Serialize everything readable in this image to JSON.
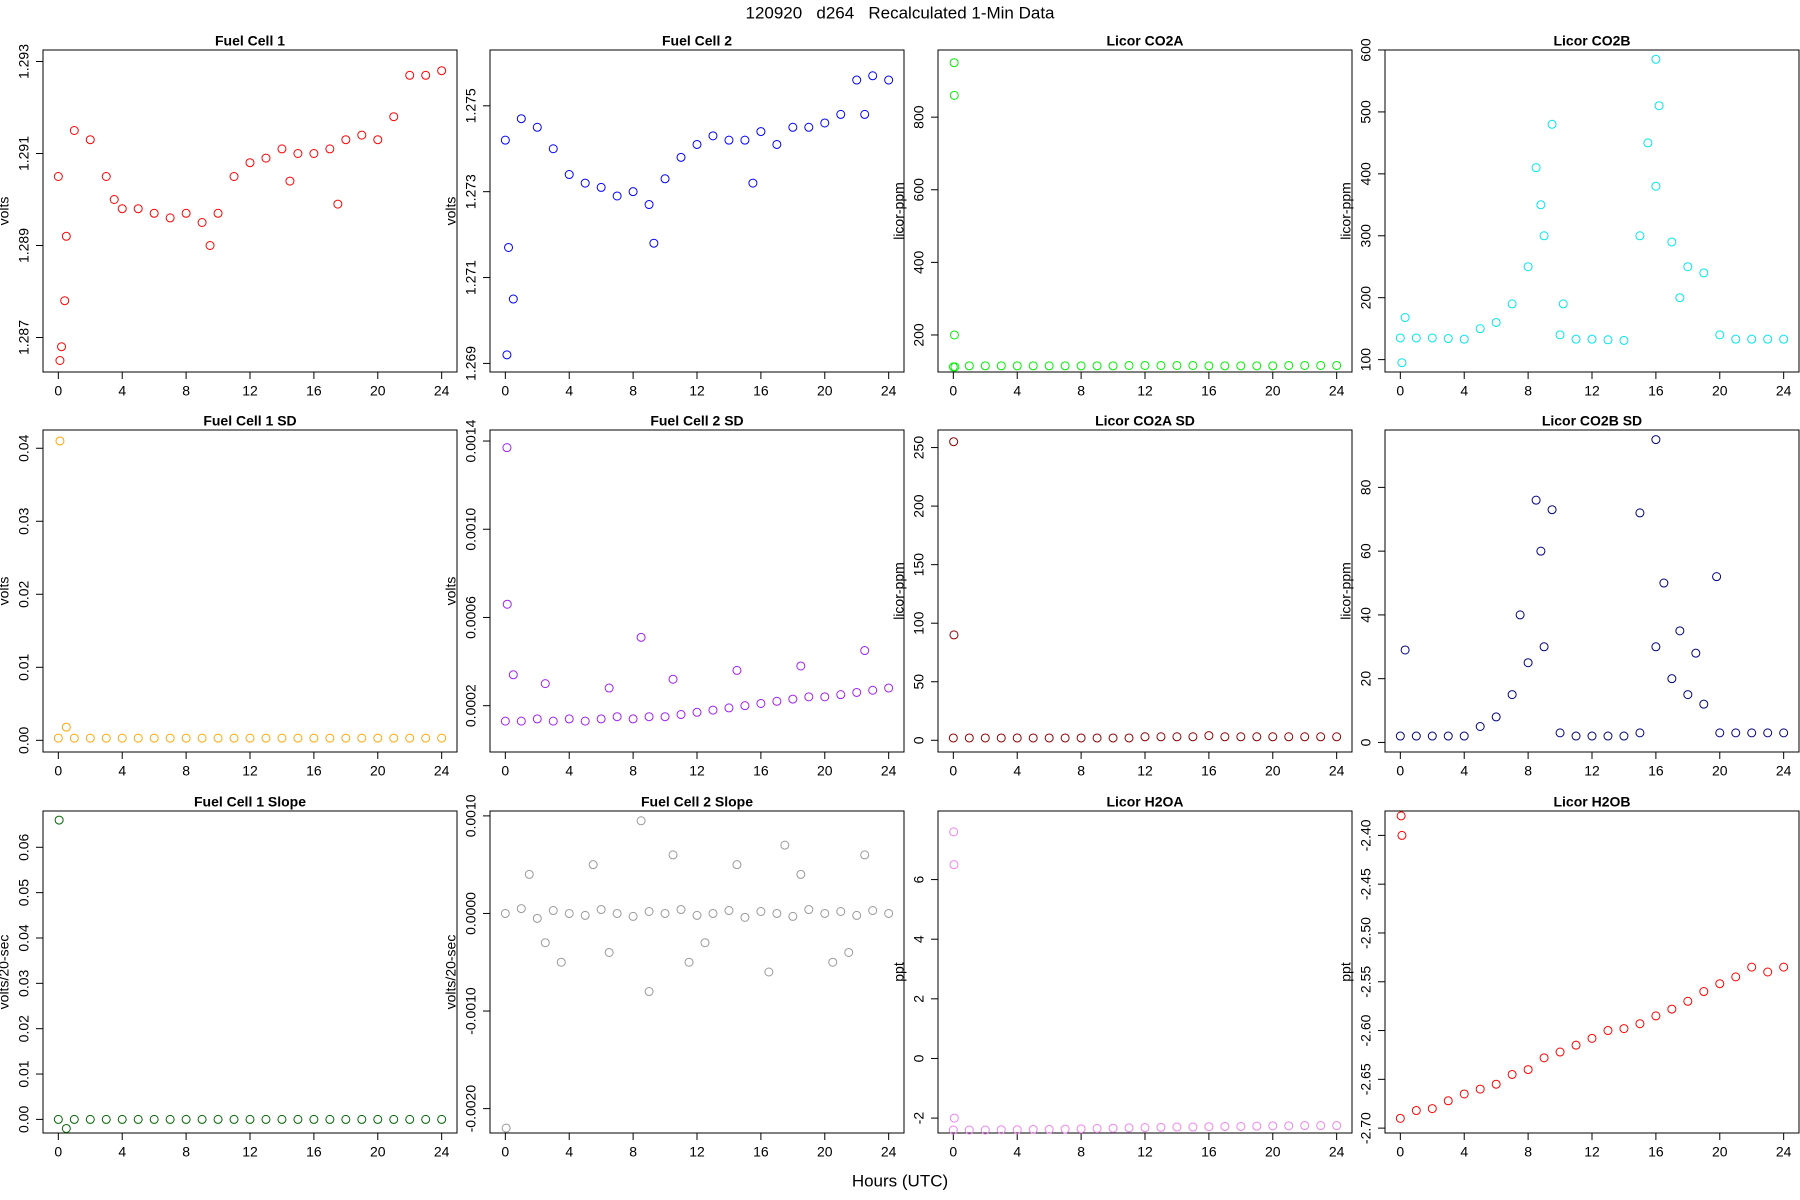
{
  "title": "120920   d264   Recalculated 1-Min Data",
  "x_label": "Hours (UTC)",
  "chart_data": [
    {
      "type": "scatter",
      "title": "Fuel Cell 1",
      "y_label": "volts",
      "color": "#ff0000",
      "x": [
        0,
        1,
        2,
        3,
        4,
        5,
        6,
        7,
        8,
        9,
        10,
        11,
        12,
        13,
        14,
        15,
        16,
        17,
        18,
        19,
        20,
        21,
        22,
        23,
        24,
        0.1,
        0.2,
        0.4,
        0.5,
        9.5,
        17.5,
        3.5,
        14.5
      ],
      "values": [
        1.2905,
        1.2915,
        1.2913,
        1.2905,
        1.2898,
        1.2898,
        1.2897,
        1.2896,
        1.2897,
        1.2895,
        1.2897,
        1.2905,
        1.2908,
        1.2909,
        1.2911,
        1.291,
        1.291,
        1.2911,
        1.2913,
        1.2914,
        1.2913,
        1.2918,
        1.2927,
        1.2927,
        1.2928,
        1.2865,
        1.2868,
        1.2878,
        1.2892,
        1.289,
        1.2899,
        1.29,
        1.2904
      ],
      "xlim": [
        -0.96,
        24.96
      ],
      "ylim": [
        1.28625,
        1.29325
      ],
      "xticks": [
        0,
        4,
        8,
        12,
        16,
        20,
        24
      ],
      "yticks": [
        1.287,
        1.289,
        1.291,
        1.293
      ]
    },
    {
      "type": "scatter",
      "title": "Fuel Cell 2",
      "y_label": "volts",
      "color": "#0000ff",
      "x": [
        0,
        1,
        2,
        3,
        4,
        5,
        6,
        7,
        8,
        9,
        10,
        11,
        12,
        13,
        14,
        15,
        16,
        17,
        18,
        19,
        20,
        21,
        22,
        23,
        24,
        0.1,
        0.2,
        0.5,
        9.3,
        15.5,
        22.5
      ],
      "values": [
        1.2742,
        1.2747,
        1.2745,
        1.274,
        1.2734,
        1.2732,
        1.2731,
        1.2729,
        1.273,
        1.2727,
        1.2733,
        1.2738,
        1.2741,
        1.2743,
        1.2742,
        1.2742,
        1.2744,
        1.2741,
        1.2745,
        1.2745,
        1.2746,
        1.2748,
        1.2756,
        1.2757,
        1.2756,
        1.2692,
        1.2717,
        1.2705,
        1.2718,
        1.2732,
        1.2748
      ],
      "xlim": [
        -0.96,
        24.96
      ],
      "ylim": [
        1.2688,
        1.2763
      ],
      "xticks": [
        0,
        4,
        8,
        12,
        16,
        20,
        24
      ],
      "yticks": [
        1.269,
        1.271,
        1.273,
        1.275
      ]
    },
    {
      "type": "scatter",
      "title": "Licor CO2A",
      "y_label": "licor-ppm",
      "color": "#00ee00",
      "x": [
        0,
        1,
        2,
        3,
        4,
        5,
        6,
        7,
        8,
        9,
        10,
        11,
        12,
        13,
        14,
        15,
        16,
        17,
        18,
        19,
        20,
        21,
        22,
        23,
        24,
        0.05,
        0.06,
        0.07,
        0.1
      ],
      "values": [
        112,
        115,
        115,
        115,
        115,
        115,
        115,
        115,
        115,
        115,
        115,
        116,
        116,
        116,
        116,
        116,
        115,
        115,
        115,
        115,
        115,
        116,
        116,
        116,
        116,
        950,
        860,
        200,
        112
      ],
      "xlim": [
        -0.96,
        24.96
      ],
      "ylim": [
        98,
        985
      ],
      "xticks": [
        0,
        4,
        8,
        12,
        16,
        20,
        24
      ],
      "yticks": [
        200,
        400,
        600,
        800
      ]
    },
    {
      "type": "scatter",
      "title": "Licor CO2B",
      "y_label": "licor-ppm",
      "color": "#00e5ee",
      "x": [
        0,
        1,
        2,
        3,
        4,
        5,
        6,
        7,
        8,
        9,
        10,
        11,
        12,
        13,
        14,
        15,
        16,
        17,
        18,
        19,
        20,
        21,
        22,
        23,
        24,
        0.1,
        0.3,
        9.5,
        16,
        16.2,
        8.5,
        15.5,
        17.5,
        8.8,
        10.2
      ],
      "values": [
        135,
        135,
        135,
        134,
        133,
        150,
        160,
        190,
        250,
        300,
        140,
        133,
        133,
        132,
        131,
        300,
        380,
        290,
        250,
        240,
        140,
        133,
        133,
        133,
        133,
        95,
        168,
        480,
        585,
        510,
        410,
        450,
        200,
        350,
        190
      ],
      "xlim": [
        -0.96,
        24.96
      ],
      "ylim": [
        80,
        600
      ],
      "xticks": [
        0,
        4,
        8,
        12,
        16,
        20,
        24
      ],
      "yticks": [
        100,
        200,
        300,
        400,
        500,
        600
      ]
    },
    {
      "type": "scatter",
      "title": "Fuel Cell 1 SD",
      "y_label": "volts",
      "color": "#ffa500",
      "x": [
        0,
        1,
        2,
        3,
        4,
        5,
        6,
        7,
        8,
        9,
        10,
        11,
        12,
        13,
        14,
        15,
        16,
        17,
        18,
        19,
        20,
        21,
        22,
        23,
        24,
        0.1,
        0.5
      ],
      "values": [
        0.0003,
        0.0003,
        0.0003,
        0.0003,
        0.0003,
        0.0003,
        0.0003,
        0.0003,
        0.0003,
        0.0003,
        0.0003,
        0.0003,
        0.0003,
        0.0003,
        0.0003,
        0.0003,
        0.0003,
        0.0003,
        0.0003,
        0.0003,
        0.0003,
        0.0003,
        0.0003,
        0.0003,
        0.0003,
        0.041,
        0.0018
      ],
      "xlim": [
        -0.96,
        24.96
      ],
      "ylim": [
        -0.0016,
        0.0425
      ],
      "xticks": [
        0,
        4,
        8,
        12,
        16,
        20,
        24
      ],
      "yticks": [
        {
          "value": 0,
          "label": "0.00"
        },
        0.01,
        0.02,
        0.03,
        0.04
      ]
    },
    {
      "type": "scatter",
      "title": "Fuel Cell 2 SD",
      "y_label": "volts",
      "color": "#a020f0",
      "x": [
        0,
        1,
        2,
        3,
        4,
        5,
        6,
        7,
        8,
        9,
        10,
        11,
        12,
        13,
        14,
        15,
        16,
        17,
        18,
        19,
        20,
        21,
        22,
        23,
        24,
        0.1,
        0.12,
        8.5,
        0.5,
        2.5,
        6.5,
        10.5,
        14.5,
        18.5,
        22.5
      ],
      "values": [
        0.00013,
        0.00013,
        0.00014,
        0.00013,
        0.00014,
        0.00013,
        0.00014,
        0.00015,
        0.00014,
        0.00015,
        0.00015,
        0.00016,
        0.00017,
        0.00018,
        0.00019,
        0.0002,
        0.00021,
        0.00022,
        0.00023,
        0.00024,
        0.00024,
        0.00025,
        0.00026,
        0.00027,
        0.00028,
        0.00137,
        0.00066,
        0.00051,
        0.00034,
        0.0003,
        0.00028,
        0.00032,
        0.00036,
        0.00038,
        0.00045
      ],
      "xlim": [
        -0.96,
        24.96
      ],
      "ylim": [
        -1e-05,
        0.00145
      ],
      "xticks": [
        0,
        4,
        8,
        12,
        16,
        20,
        24
      ],
      "yticks": [
        0.0002,
        0.0006,
        {
          "value": 0.001,
          "label": "0.0010"
        },
        0.0014
      ]
    },
    {
      "type": "scatter",
      "title": "Licor CO2A SD",
      "y_label": "licor-ppm",
      "color": "#8b0000",
      "x": [
        0,
        1,
        2,
        3,
        4,
        5,
        6,
        7,
        8,
        9,
        10,
        11,
        12,
        13,
        14,
        15,
        16,
        17,
        18,
        19,
        20,
        21,
        22,
        23,
        24,
        0.02,
        0.04
      ],
      "values": [
        2,
        2,
        2,
        2,
        2,
        2,
        2,
        2,
        2,
        2,
        2,
        2,
        3,
        3,
        3,
        3,
        4,
        3,
        3,
        3,
        3,
        3,
        3,
        3,
        3,
        255,
        90
      ],
      "xlim": [
        -0.96,
        24.96
      ],
      "ylim": [
        -10,
        265
      ],
      "xticks": [
        0,
        4,
        8,
        12,
        16,
        20,
        24
      ],
      "yticks": [
        0,
        50,
        100,
        150,
        200,
        250
      ]
    },
    {
      "type": "scatter",
      "title": "Licor CO2B SD",
      "y_label": "licor-ppm",
      "color": "#000080",
      "x": [
        0,
        1,
        2,
        3,
        4,
        5,
        6,
        7,
        8,
        9,
        10,
        11,
        12,
        13,
        14,
        15,
        16,
        17,
        18,
        19,
        20,
        21,
        22,
        23,
        24,
        8.5,
        16,
        15,
        0.3,
        19.8,
        9.5,
        8.8,
        16.5,
        17.5,
        7.5,
        18.5
      ],
      "values": [
        2,
        2,
        2,
        2,
        2,
        5,
        8,
        15,
        25,
        30,
        3,
        2,
        2,
        2,
        2,
        3,
        30,
        20,
        15,
        12,
        3,
        3,
        3,
        3,
        3,
        76,
        95,
        72,
        29,
        52,
        73,
        60,
        50,
        35,
        40,
        28
      ],
      "xlim": [
        -0.96,
        24.96
      ],
      "ylim": [
        -3,
        98
      ],
      "xticks": [
        0,
        4,
        8,
        12,
        16,
        20,
        24
      ],
      "yticks": [
        0,
        20,
        40,
        60,
        80
      ]
    },
    {
      "type": "scatter",
      "title": "Fuel Cell 1 Slope",
      "y_label": "volts/20-sec",
      "color": "#006400",
      "x": [
        0,
        1,
        2,
        3,
        4,
        5,
        6,
        7,
        8,
        9,
        10,
        11,
        12,
        13,
        14,
        15,
        16,
        17,
        18,
        19,
        20,
        21,
        22,
        23,
        24,
        0.05,
        0.5
      ],
      "values": [
        0,
        0,
        0,
        0,
        0,
        0,
        0,
        0,
        0,
        0,
        0,
        0,
        0,
        0,
        0,
        0,
        0,
        0,
        0,
        0,
        0,
        0,
        0,
        0,
        0,
        0.066,
        -0.002
      ],
      "xlim": [
        -0.96,
        24.96
      ],
      "ylim": [
        -0.003,
        0.068
      ],
      "xticks": [
        0,
        4,
        8,
        12,
        16,
        20,
        24
      ],
      "yticks": [
        {
          "value": 0,
          "label": "0.00"
        },
        0.01,
        0.02,
        0.03,
        0.04,
        0.05,
        0.06
      ]
    },
    {
      "type": "scatter",
      "title": "Fuel Cell 2 Slope",
      "y_label": "volts/20-sec",
      "color": "#999999",
      "x": [
        0,
        1,
        2,
        3,
        4,
        5,
        6,
        7,
        8,
        9,
        10,
        11,
        12,
        13,
        14,
        15,
        16,
        17,
        18,
        19,
        20,
        21,
        22,
        23,
        24,
        0.05,
        8.5,
        9,
        1.5,
        3.5,
        5.5,
        6.5,
        10.5,
        12.5,
        14.5,
        16.5,
        18.5,
        20.5,
        22.5,
        2.5,
        11.5,
        17.5,
        21.5
      ],
      "values": [
        0,
        5e-05,
        -5e-05,
        3e-05,
        0,
        -2e-05,
        4e-05,
        0,
        -3e-05,
        2e-05,
        0,
        4e-05,
        -2e-05,
        0,
        3e-05,
        -4e-05,
        2e-05,
        0,
        -3e-05,
        4e-05,
        0,
        2e-05,
        -2e-05,
        3e-05,
        0,
        -0.0022,
        0.00095,
        -0.0008,
        0.0004,
        -0.0005,
        0.0005,
        -0.0004,
        0.0006,
        -0.0003,
        0.0005,
        -0.0006,
        0.0004,
        -0.0005,
        0.0006,
        -0.0003,
        -0.0005,
        0.0007,
        -0.0004
      ],
      "xlim": [
        -0.96,
        24.96
      ],
      "ylim": [
        -0.00225,
        0.00105
      ],
      "xticks": [
        0,
        4,
        8,
        12,
        16,
        20,
        24
      ],
      "yticks": [
        {
          "value": -0.002,
          "label": "-0.0020"
        },
        {
          "value": -0.001,
          "label": "-0.0010"
        },
        {
          "value": 0,
          "label": "0.0000"
        },
        {
          "value": 0.001,
          "label": "0.0010"
        }
      ]
    },
    {
      "type": "scatter",
      "title": "Licor H2OA",
      "y_label": "ppt",
      "color": "#ee82ee",
      "x": [
        0,
        1,
        2,
        3,
        4,
        5,
        6,
        7,
        8,
        9,
        10,
        11,
        12,
        13,
        14,
        15,
        16,
        17,
        18,
        19,
        20,
        21,
        22,
        23,
        24,
        0.02,
        0.04,
        0.06
      ],
      "values": [
        -2.4,
        -2.4,
        -2.4,
        -2.39,
        -2.39,
        -2.38,
        -2.38,
        -2.37,
        -2.36,
        -2.35,
        -2.34,
        -2.33,
        -2.32,
        -2.31,
        -2.3,
        -2.3,
        -2.29,
        -2.28,
        -2.28,
        -2.27,
        -2.26,
        -2.26,
        -2.25,
        -2.25,
        -2.25,
        7.6,
        6.5,
        -2
      ],
      "xlim": [
        -0.96,
        24.96
      ],
      "ylim": [
        -2.5,
        8.3
      ],
      "xticks": [
        0,
        4,
        8,
        12,
        16,
        20,
        24
      ],
      "yticks": [
        -2,
        0,
        2,
        4,
        6
      ]
    },
    {
      "type": "scatter",
      "title": "Licor H2OB",
      "y_label": "ppt",
      "color": "#ff0000",
      "x": [
        0,
        1,
        2,
        3,
        4,
        5,
        6,
        7,
        8,
        9,
        10,
        11,
        12,
        13,
        14,
        15,
        16,
        17,
        18,
        19,
        20,
        21,
        22,
        23,
        24,
        0.05,
        0.1
      ],
      "values": [
        -2.69,
        -2.682,
        -2.68,
        -2.672,
        -2.665,
        -2.66,
        -2.655,
        -2.645,
        -2.64,
        -2.628,
        -2.622,
        -2.615,
        -2.608,
        -2.6,
        -2.598,
        -2.593,
        -2.585,
        -2.578,
        -2.57,
        -2.56,
        -2.552,
        -2.545,
        -2.535,
        -2.54,
        -2.535,
        -2.38,
        -2.4
      ],
      "xlim": [
        -0.96,
        24.96
      ],
      "ylim": [
        -2.705,
        -2.375
      ],
      "xticks": [
        0,
        4,
        8,
        12,
        16,
        20,
        24
      ],
      "yticks": [
        {
          "value": -2.7,
          "label": "-2.70"
        },
        -2.65,
        {
          "value": -2.6,
          "label": "-2.60"
        },
        -2.55,
        {
          "value": -2.5,
          "label": "-2.50"
        },
        -2.45,
        {
          "value": -2.4,
          "label": "-2.40"
        }
      ]
    }
  ]
}
